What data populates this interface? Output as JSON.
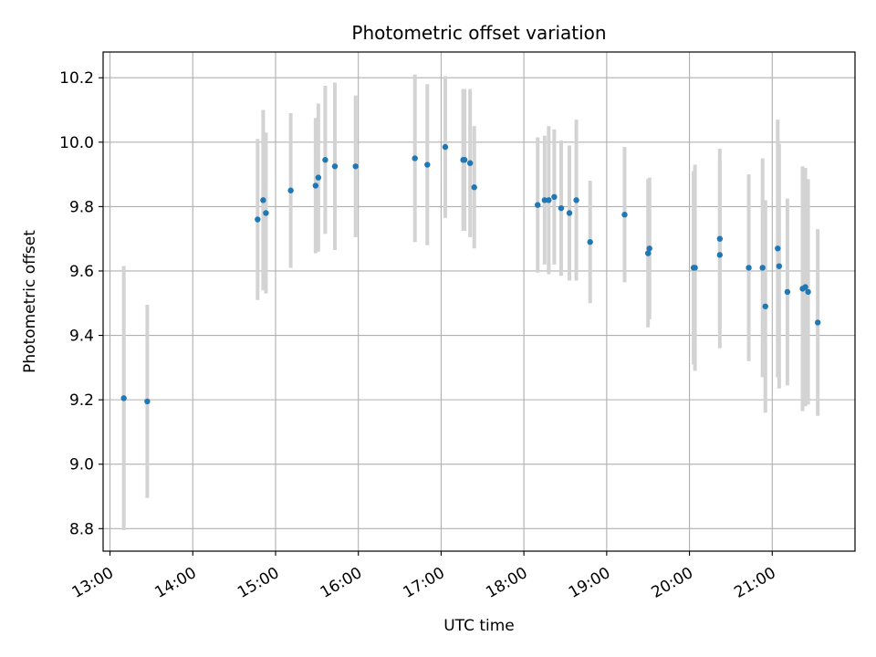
{
  "chart_data": {
    "type": "scatter",
    "title": "Photometric offset variation",
    "xlabel": "UTC time",
    "ylabel": "Photometric offset",
    "x_ticks": [
      "13:00",
      "14:00",
      "15:00",
      "16:00",
      "17:00",
      "18:00",
      "19:00",
      "20:00",
      "21:00"
    ],
    "y_ticks": [
      "8.8",
      "9.0",
      "9.2",
      "9.4",
      "9.6",
      "9.8",
      "10.0",
      "10.2"
    ],
    "xlim": [
      "12:55",
      "22:00"
    ],
    "ylim": [
      8.73,
      10.28
    ],
    "grid": true,
    "colors": {
      "point": "#1f77b4",
      "errorbar": "#d3d3d3",
      "grid": "#b0b0b0",
      "axes": "#000000"
    },
    "series": [
      {
        "x": [
          "13:10",
          "13:27",
          "14:47",
          "14:51",
          "14:53",
          "15:11",
          "15:29",
          "15:31",
          "15:36",
          "15:43",
          "15:58",
          "16:41",
          "16:50",
          "17:03",
          "17:16",
          "17:17",
          "17:21",
          "17:24",
          "18:10",
          "18:15",
          "18:18",
          "18:22",
          "18:27",
          "18:33",
          "18:38",
          "18:48",
          "19:13",
          "19:30",
          "19:31",
          "20:03",
          "20:04",
          "20:22",
          "20:22",
          "20:43",
          "20:53",
          "20:55",
          "21:04",
          "21:05",
          "21:11",
          "21:22",
          "21:24",
          "21:26",
          "21:33"
        ],
        "y": [
          9.205,
          9.195,
          9.76,
          9.82,
          9.78,
          9.85,
          9.865,
          9.89,
          9.945,
          9.925,
          9.925,
          9.95,
          9.93,
          9.985,
          9.945,
          9.945,
          9.935,
          9.86,
          9.805,
          9.82,
          9.82,
          9.83,
          9.795,
          9.78,
          9.82,
          9.69,
          9.775,
          9.655,
          9.67,
          9.61,
          9.61,
          9.7,
          9.65,
          9.61,
          9.61,
          9.49,
          9.67,
          9.615,
          9.535,
          9.545,
          9.55,
          9.535,
          9.44
        ],
        "err": [
          0.41,
          0.3,
          0.25,
          0.28,
          0.25,
          0.24,
          0.21,
          0.23,
          0.23,
          0.26,
          0.22,
          0.26,
          0.25,
          0.22,
          0.22,
          0.22,
          0.23,
          0.19,
          0.21,
          0.2,
          0.23,
          0.21,
          0.21,
          0.21,
          0.25,
          0.19,
          0.21,
          0.23,
          0.22,
          0.3,
          0.32,
          0.28,
          0.29,
          0.29,
          0.34,
          0.33,
          0.4,
          0.38,
          0.29,
          0.38,
          0.37,
          0.35,
          0.29
        ]
      }
    ]
  }
}
